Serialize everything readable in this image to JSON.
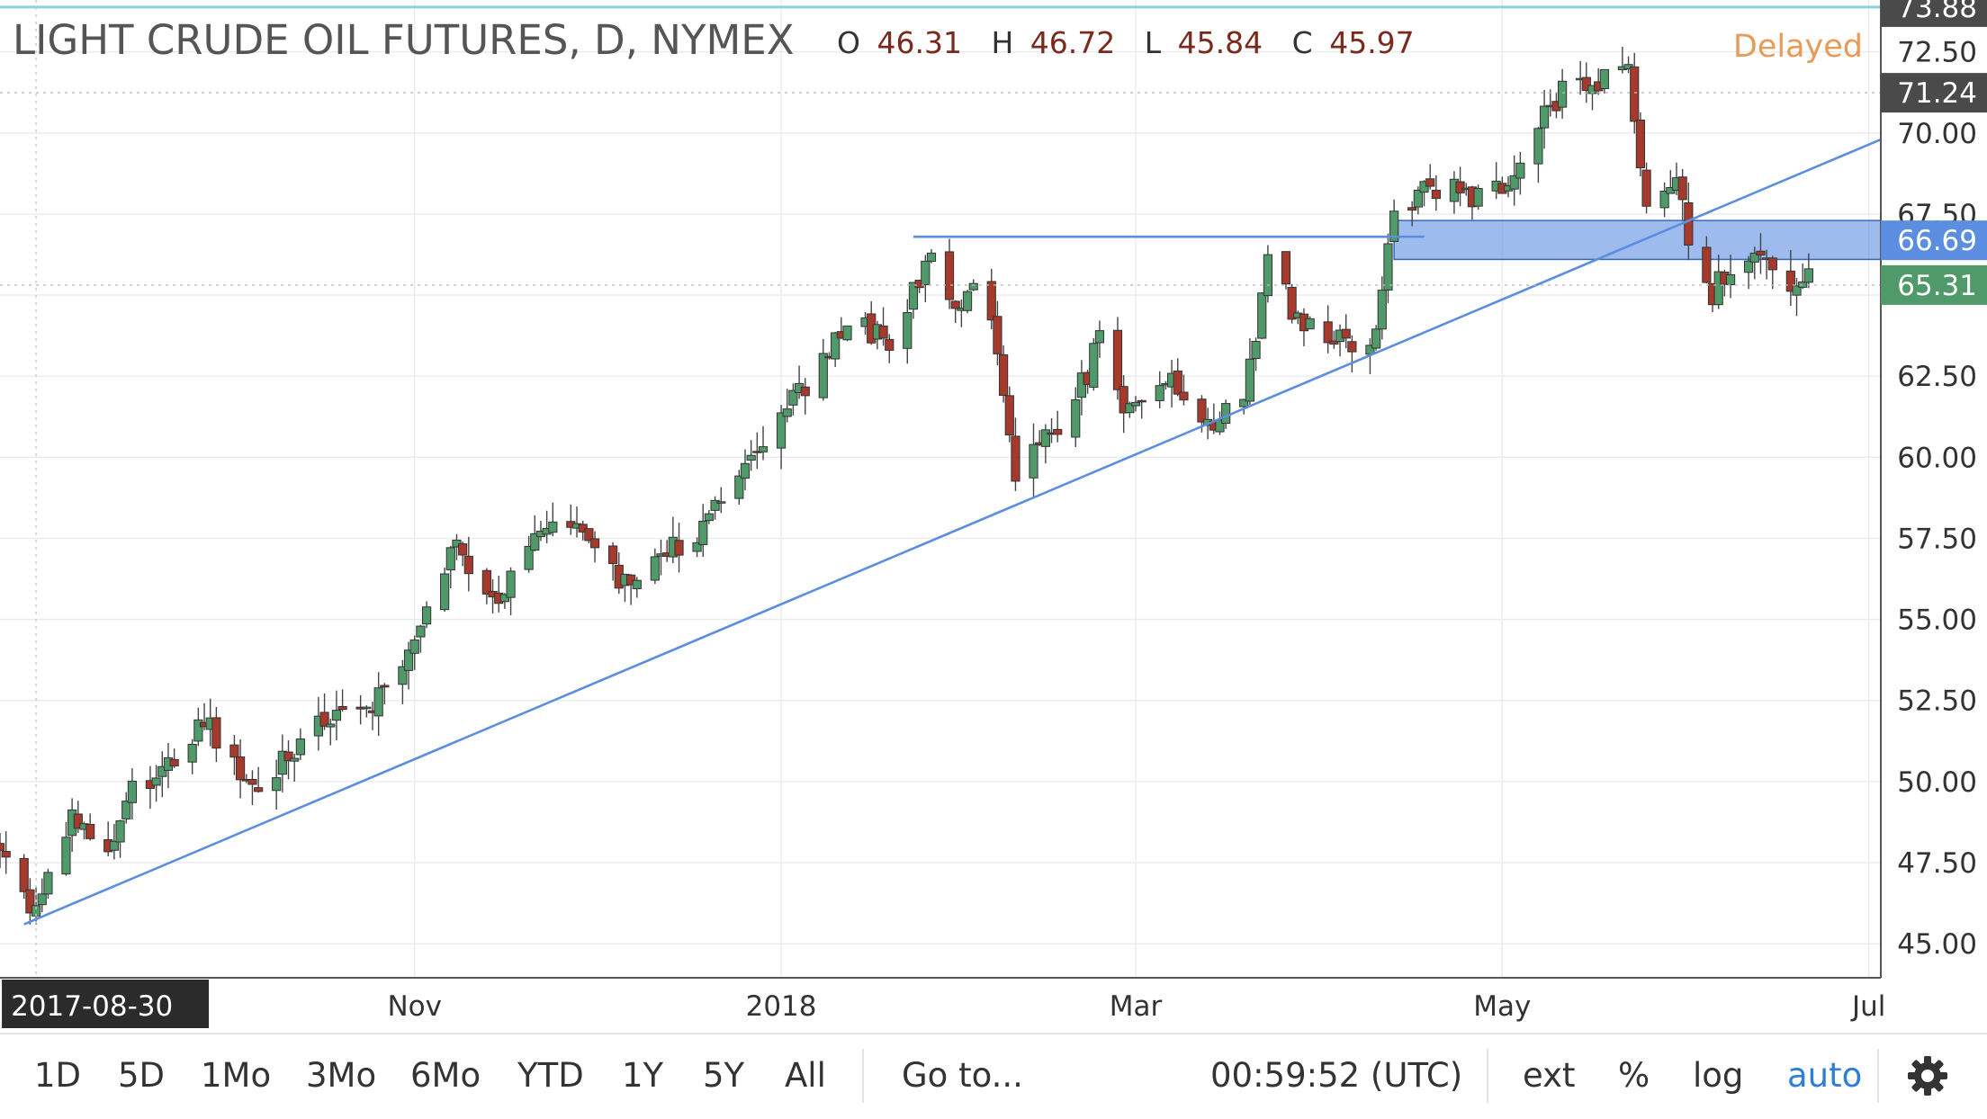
{
  "header": {
    "title": "LIGHT CRUDE OIL FUTURES, D, NYMEX",
    "ohlc": {
      "o_label": "O",
      "o": "46.31",
      "h_label": "H",
      "h": "46.72",
      "l_label": "L",
      "l": "45.84",
      "c_label": "C",
      "c": "45.97"
    },
    "status": "Delayed"
  },
  "chart_data": {
    "type": "candlestick",
    "title": "LIGHT CRUDE OIL FUTURES, D, NYMEX",
    "y_ticks": [
      45.0,
      47.5,
      50.0,
      52.5,
      55.0,
      57.5,
      60.0,
      62.5,
      65.0,
      67.5,
      70.0,
      72.5
    ],
    "y_tick_labels": [
      "45.00",
      "47.50",
      "50.00",
      "52.50",
      "55.00",
      "57.50",
      "60.00",
      "62.50",
      "",
      "67.50",
      "70.00",
      "72.50"
    ],
    "ylim": [
      43.95,
      74.1
    ],
    "x_ticks": [
      {
        "date": "2017-11-01",
        "label": "Nov"
      },
      {
        "date": "2018-01-01",
        "label": "2018"
      },
      {
        "date": "2018-03-01",
        "label": "Mar"
      },
      {
        "date": "2018-05-01",
        "label": "May"
      },
      {
        "date": "2018-07-01",
        "label": "Jul"
      }
    ],
    "x_range": [
      "2017-08-24",
      "2018-07-03"
    ],
    "crosshair_date_label": "2017-08-30",
    "price_labels": [
      {
        "value": 73.88,
        "label": "73.88",
        "bg": "#4a4a4a",
        "fg": "#ffffff",
        "line": "#8ed0dc",
        "line_style": "solid"
      },
      {
        "value": 71.24,
        "label": "71.24",
        "bg": "#4a4a4a",
        "fg": "#ffffff",
        "line": "#bbbbbb",
        "line_style": "dotted"
      },
      {
        "value": 66.69,
        "label": "66.69",
        "bg": "#5b8ee0",
        "fg": "#ffffff",
        "line": null,
        "line_style": null
      },
      {
        "value": 65.31,
        "label": "65.31",
        "bg": "#4f9a68",
        "fg": "#ffffff",
        "line": "#bbbbbb",
        "line_style": "dotted"
      }
    ],
    "up_color": "#4f9a68",
    "down_color": "#a53a2c",
    "trendlines": [
      {
        "from": {
          "date": "2017-08-28",
          "value": 45.6
        },
        "to": {
          "date": "2018-07-03",
          "value": 69.8
        },
        "color": "#5b8ee0"
      },
      {
        "from": {
          "date": "2018-01-23",
          "value": 66.8
        },
        "to": {
          "date": "2018-04-18",
          "value": 66.8
        },
        "color": "#5b8ee0"
      }
    ],
    "zones": [
      {
        "from_date": "2018-04-13",
        "to_date": "2018-07-03",
        "low": 66.1,
        "high": 67.3,
        "color": "#5b8ee0"
      }
    ],
    "anchors": [
      {
        "date": "2017-08-24",
        "value": 48.0
      },
      {
        "date": "2017-08-30",
        "value": 45.9
      },
      {
        "date": "2017-09-05",
        "value": 49.0
      },
      {
        "date": "2017-09-10",
        "value": 47.6
      },
      {
        "date": "2017-09-15",
        "value": 49.8
      },
      {
        "date": "2017-09-22",
        "value": 50.7
      },
      {
        "date": "2017-09-27",
        "value": 52.1
      },
      {
        "date": "2017-10-05",
        "value": 49.6
      },
      {
        "date": "2017-10-10",
        "value": 50.8
      },
      {
        "date": "2017-10-14",
        "value": 51.5
      },
      {
        "date": "2017-10-20",
        "value": 51.9
      },
      {
        "date": "2017-10-26",
        "value": 52.6
      },
      {
        "date": "2017-11-02",
        "value": 54.4
      },
      {
        "date": "2017-11-07",
        "value": 57.3
      },
      {
        "date": "2017-11-15",
        "value": 55.3
      },
      {
        "date": "2017-11-22",
        "value": 58.1
      },
      {
        "date": "2017-11-27",
        "value": 57.9
      },
      {
        "date": "2017-12-05",
        "value": 56.2
      },
      {
        "date": "2017-12-12",
        "value": 57.1
      },
      {
        "date": "2017-12-18",
        "value": 57.3
      },
      {
        "date": "2017-12-26",
        "value": 59.8
      },
      {
        "date": "2018-01-04",
        "value": 61.9
      },
      {
        "date": "2018-01-12",
        "value": 64.3
      },
      {
        "date": "2018-01-19",
        "value": 63.4
      },
      {
        "date": "2018-01-26",
        "value": 66.1
      },
      {
        "date": "2018-01-30",
        "value": 64.5
      },
      {
        "date": "2018-02-02",
        "value": 65.5
      },
      {
        "date": "2018-02-05",
        "value": 64.1
      },
      {
        "date": "2018-02-09",
        "value": 59.2
      },
      {
        "date": "2018-02-14",
        "value": 60.6
      },
      {
        "date": "2018-02-19",
        "value": 61.7
      },
      {
        "date": "2018-02-23",
        "value": 63.6
      },
      {
        "date": "2018-02-27",
        "value": 61.5
      },
      {
        "date": "2018-03-02",
        "value": 61.8
      },
      {
        "date": "2018-03-06",
        "value": 62.4
      },
      {
        "date": "2018-03-09",
        "value": 62.0
      },
      {
        "date": "2018-03-14",
        "value": 61.0
      },
      {
        "date": "2018-03-19",
        "value": 62.1
      },
      {
        "date": "2018-03-23",
        "value": 65.9
      },
      {
        "date": "2018-03-28",
        "value": 64.4
      },
      {
        "date": "2018-04-03",
        "value": 63.5
      },
      {
        "date": "2018-04-09",
        "value": 63.4
      },
      {
        "date": "2018-04-13",
        "value": 67.4
      },
      {
        "date": "2018-04-20",
        "value": 68.4
      },
      {
        "date": "2018-04-26",
        "value": 67.9
      },
      {
        "date": "2018-05-03",
        "value": 68.4
      },
      {
        "date": "2018-05-09",
        "value": 71.1
      },
      {
        "date": "2018-05-15",
        "value": 71.3
      },
      {
        "date": "2018-05-22",
        "value": 72.2
      },
      {
        "date": "2018-05-25",
        "value": 67.9
      },
      {
        "date": "2018-05-30",
        "value": 68.2
      },
      {
        "date": "2018-06-04",
        "value": 65.0
      },
      {
        "date": "2018-06-08",
        "value": 65.6
      },
      {
        "date": "2018-06-13",
        "value": 66.3
      },
      {
        "date": "2018-06-18",
        "value": 64.9
      },
      {
        "date": "2018-06-21",
        "value": 65.4
      }
    ]
  },
  "footer": {
    "ranges": [
      "1D",
      "5D",
      "1Mo",
      "3Mo",
      "6Mo",
      "YTD",
      "1Y",
      "5Y",
      "All"
    ],
    "goto_label": "Go to...",
    "clock": "00:59:52 (UTC)",
    "ext_label": "ext",
    "percent_label": "%",
    "log_label": "log",
    "auto_label": "auto",
    "settings_icon": "gear-icon"
  }
}
